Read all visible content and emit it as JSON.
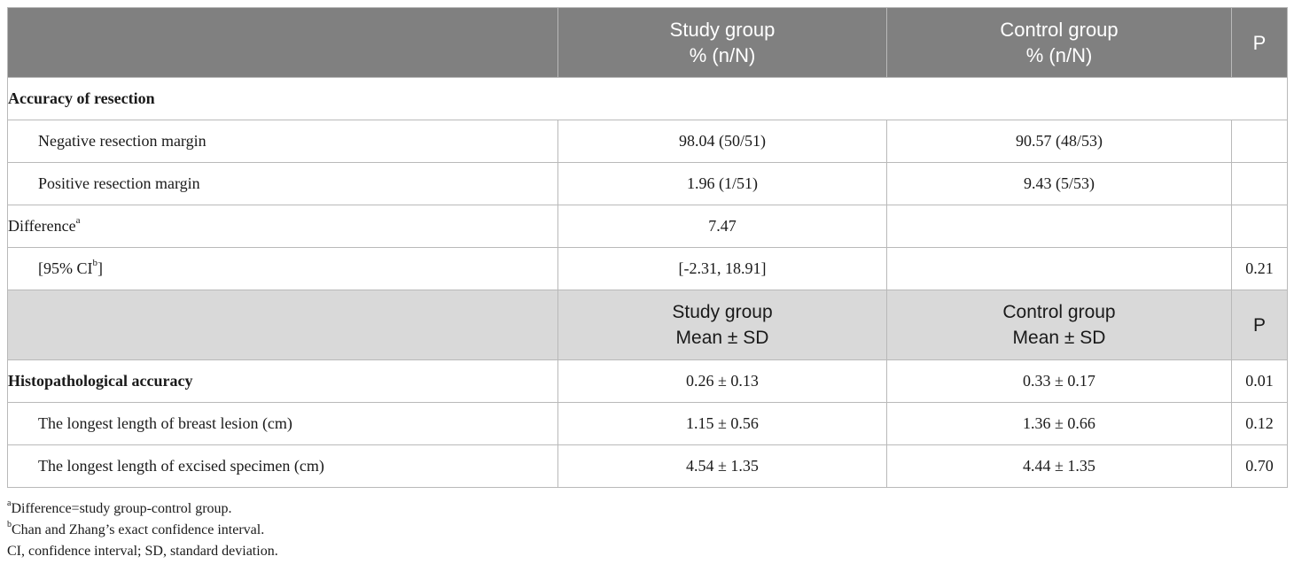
{
  "header1": {
    "study_line1": "Study group",
    "study_line2": "% (n/N)",
    "control_line1": "Control group",
    "control_line2": "% (n/N)",
    "p": "P"
  },
  "section1": {
    "title": "Accuracy of resection"
  },
  "rows1": [
    {
      "label": "Negative resection margin",
      "study": "98.04 (50/51)",
      "control": "90.57 (48/53)",
      "p": ""
    },
    {
      "label": "Positive resection margin",
      "study": "1.96 (1/51)",
      "control": "9.43 (5/53)",
      "p": ""
    }
  ],
  "difference": {
    "label": "Difference",
    "sup": "a",
    "study": "7.47",
    "control": "",
    "p": ""
  },
  "ci": {
    "label_pre": "[95% CI",
    "sup": "b",
    "label_post": "]",
    "study": "[-2.31, 18.91]",
    "control": "",
    "p": "0.21"
  },
  "header2": {
    "study_line1": "Study group",
    "study_line2": "Mean ± SD",
    "control_line1": "Control group",
    "control_line2": "Mean ± SD",
    "p": "P"
  },
  "section2": {
    "title": "Histopathological accuracy",
    "study": "0.26 ± 0.13",
    "control": "0.33 ± 0.17",
    "p": "0.01"
  },
  "rows2": [
    {
      "label": "The longest length of breast lesion (cm)",
      "study": "1.15 ± 0.56",
      "control": "1.36 ± 0.66",
      "p": "0.12"
    },
    {
      "label": "The longest length of excised specimen (cm)",
      "study": "4.54 ± 1.35",
      "control": "4.44 ± 1.35",
      "p": "0.70"
    }
  ],
  "footnotes": [
    {
      "sup": "a",
      "text": "Difference=study group-control group."
    },
    {
      "sup": "b",
      "text": "Chan and Zhang’s exact confidence interval."
    },
    {
      "sup": "",
      "text": "CI, confidence interval; SD, standard deviation."
    }
  ]
}
